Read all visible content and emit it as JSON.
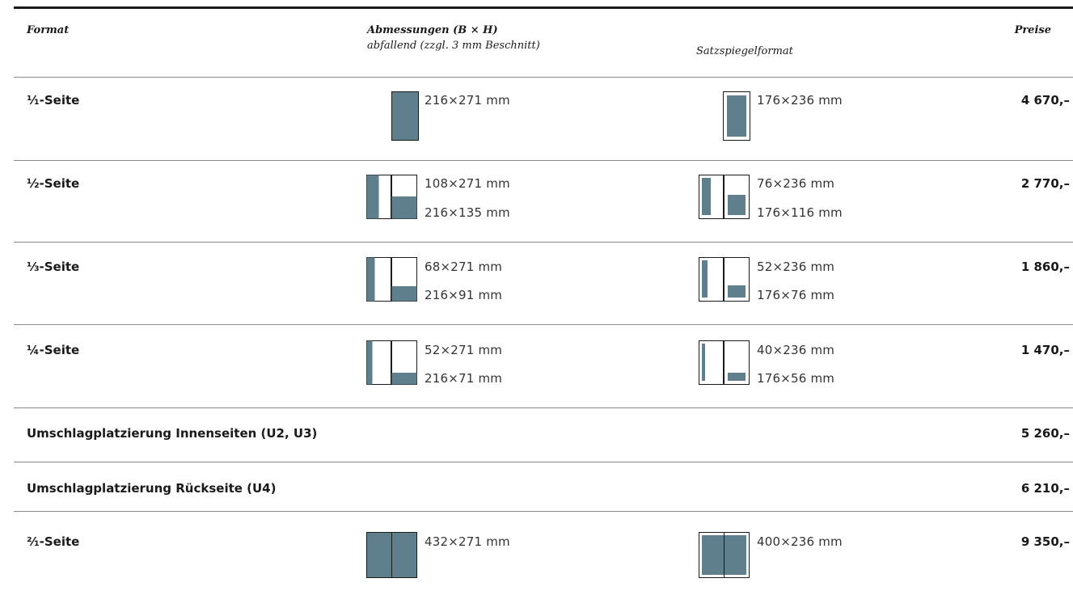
{
  "colors": {
    "fill": "#5e7f8b",
    "rule": "#1a1a1a",
    "separator": "#8a8a8a"
  },
  "header": {
    "format": "Format",
    "dimensions": "Abmessungen (B × H)",
    "bleed": "abfallend (zzgl. 3 mm Beschnitt)",
    "type_area": "Satzspiegelformat",
    "prices": "Preise"
  },
  "rows": [
    {
      "format": "¹⁄₁-Seite",
      "bleed": [
        "216×271 mm"
      ],
      "type_area": [
        "176×236 mm"
      ],
      "price": "4 670,–"
    },
    {
      "format": "½-Seite",
      "bleed": [
        "108×271 mm",
        "216×135 mm"
      ],
      "type_area": [
        "76×236 mm",
        "176×116 mm"
      ],
      "price": "2 770,–"
    },
    {
      "format": "⅓-Seite",
      "bleed": [
        "68×271 mm",
        "216×91 mm"
      ],
      "type_area": [
        "52×236 mm",
        "176×76 mm"
      ],
      "price": "1 860,–"
    },
    {
      "format": "¼-Seite",
      "bleed": [
        "52×271 mm",
        "216×71 mm"
      ],
      "type_area": [
        "40×236 mm",
        "176×56 mm"
      ],
      "price": "1 470,–"
    },
    {
      "format": "Umschlagplatzierung Innenseiten (U2, U3)",
      "price": "5 260,–"
    },
    {
      "format": "Umschlagplatzierung Rückseite (U4)",
      "price": "6 210,–"
    },
    {
      "format": "²⁄₁-Seite",
      "bleed": [
        "432×271 mm"
      ],
      "type_area": [
        "400×236 mm"
      ],
      "price": "9 350,–"
    }
  ]
}
